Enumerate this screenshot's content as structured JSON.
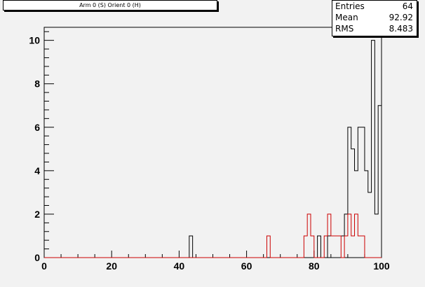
{
  "chart_data": {
    "type": "histogram",
    "title": "Arm 0 (S) Orient 0 (H)",
    "xlim": [
      0,
      100
    ],
    "ylim": [
      0,
      10.6
    ],
    "bin_width": 1,
    "x_ticks": [
      0,
      20,
      40,
      60,
      80,
      100
    ],
    "y_ticks": [
      0,
      2,
      4,
      6,
      8,
      10
    ],
    "series": [
      {
        "color": "#000000",
        "bins": [
          {
            "x": 43,
            "count": 1
          },
          {
            "x": 81,
            "count": 1
          },
          {
            "x": 84,
            "count": 1
          },
          {
            "x": 85,
            "count": 1
          },
          {
            "x": 86,
            "count": 1
          },
          {
            "x": 87,
            "count": 1
          },
          {
            "x": 88,
            "count": 1
          },
          {
            "x": 89,
            "count": 2
          },
          {
            "x": 90,
            "count": 6
          },
          {
            "x": 91,
            "count": 5
          },
          {
            "x": 92,
            "count": 4
          },
          {
            "x": 93,
            "count": 6
          },
          {
            "x": 94,
            "count": 6
          },
          {
            "x": 95,
            "count": 4
          },
          {
            "x": 96,
            "count": 3
          },
          {
            "x": 97,
            "count": 10
          },
          {
            "x": 98,
            "count": 2
          },
          {
            "x": 99,
            "count": 7
          }
        ]
      },
      {
        "color": "#cc0000",
        "bins": [
          {
            "x": 66,
            "count": 1
          },
          {
            "x": 77,
            "count": 1
          },
          {
            "x": 78,
            "count": 2
          },
          {
            "x": 79,
            "count": 1
          },
          {
            "x": 83,
            "count": 1
          },
          {
            "x": 84,
            "count": 2
          },
          {
            "x": 85,
            "count": 1
          },
          {
            "x": 86,
            "count": 1
          },
          {
            "x": 87,
            "count": 1
          },
          {
            "x": 89,
            "count": 1
          },
          {
            "x": 90,
            "count": 2
          },
          {
            "x": 91,
            "count": 1
          },
          {
            "x": 92,
            "count": 2
          },
          {
            "x": 93,
            "count": 1
          },
          {
            "x": 94,
            "count": 1
          }
        ]
      }
    ]
  },
  "stats": {
    "entries_label": "Entries",
    "entries_value": "64",
    "mean_label": "Mean",
    "mean_value": "92.92",
    "rms_label": "RMS",
    "rms_value": "8.483"
  }
}
